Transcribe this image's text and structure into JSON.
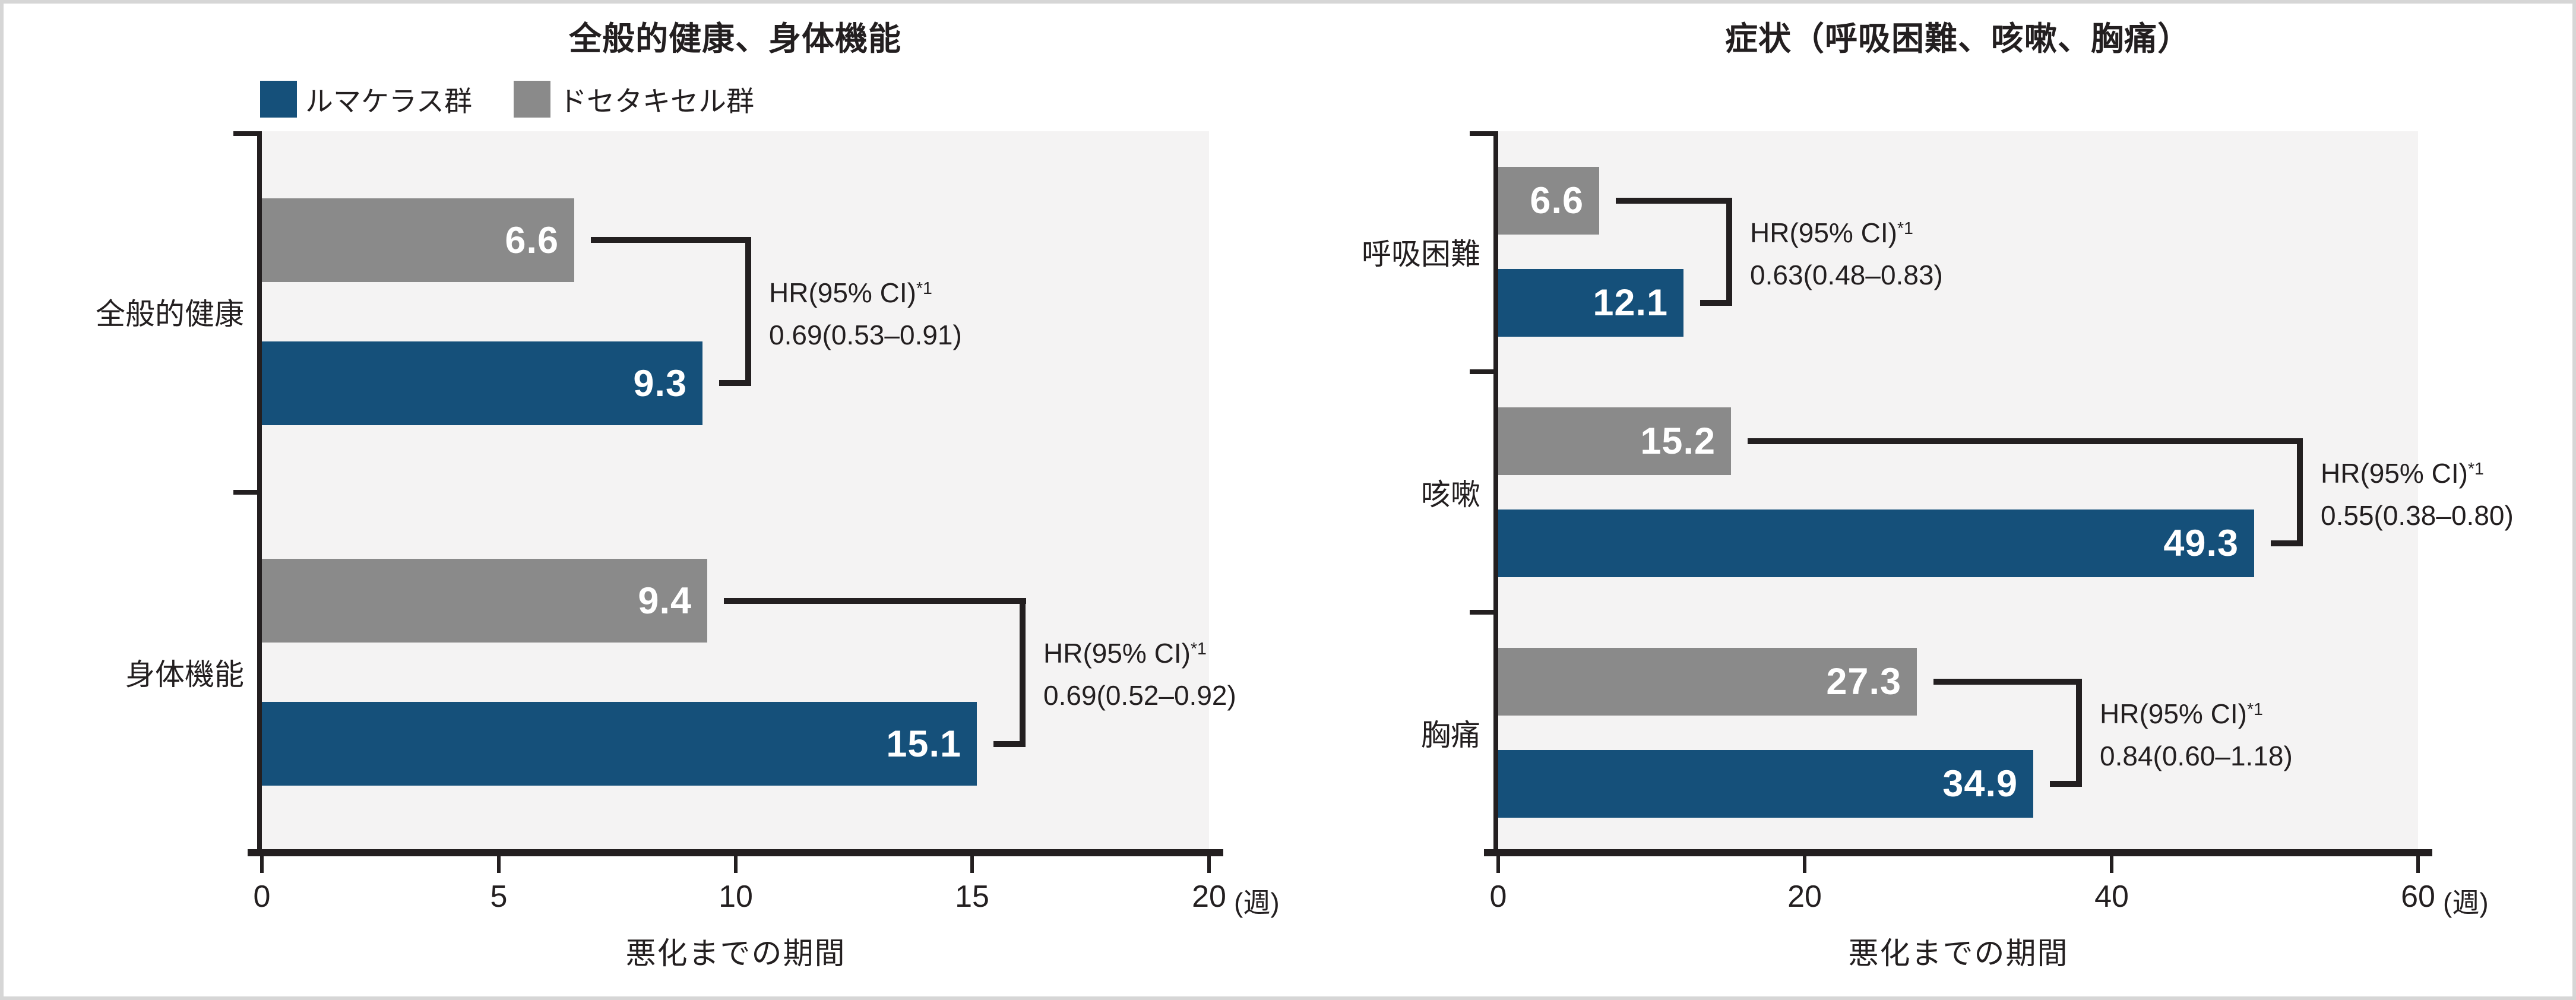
{
  "colors": {
    "lumakras_blue": "#15507a",
    "docetaxel_gray": "#8a8a8a",
    "plot_background": "#f4f3f3",
    "ink": "#231f20",
    "frame_border": "#d6d6d6"
  },
  "legend": {
    "items": [
      {
        "label": "ルマケラス群",
        "color": "#15507a"
      },
      {
        "label": "ドセタキセル群",
        "color": "#8a8a8a"
      }
    ]
  },
  "chart_data": [
    {
      "type": "bar",
      "orientation": "horizontal",
      "title": "全般的健康、身体機能",
      "xlabel": "悪化までの期間",
      "x_unit": "(週)",
      "xlim": [
        0,
        20
      ],
      "xticks": [
        "0",
        "5",
        "10",
        "15",
        "20"
      ],
      "grid": false,
      "legend_position": "top-left",
      "categories": [
        "全般的健康",
        "身体機能"
      ],
      "series": [
        {
          "name": "ルマケラス群",
          "color": "#15507a",
          "values": [
            9.3,
            15.1
          ]
        },
        {
          "name": "ドセタキセル群",
          "color": "#8a8a8a",
          "values": [
            6.6,
            9.4
          ]
        }
      ],
      "annotations": [
        {
          "label": "HR(95% CI)",
          "sup": "*1",
          "value": "0.69(0.53–0.91)"
        },
        {
          "label": "HR(95% CI)",
          "sup": "*1",
          "value": "0.69(0.52–0.92)"
        }
      ]
    },
    {
      "type": "bar",
      "orientation": "horizontal",
      "title": "症状（呼吸困難、咳嗽、胸痛）",
      "xlabel": "悪化までの期間",
      "x_unit": "(週)",
      "xlim": [
        0,
        60
      ],
      "xticks": [
        "0",
        "20",
        "40",
        "60"
      ],
      "grid": false,
      "legend_position": "none",
      "categories": [
        "呼吸困難",
        "咳嗽",
        "胸痛"
      ],
      "series": [
        {
          "name": "ルマケラス群",
          "color": "#15507a",
          "values": [
            12.1,
            49.3,
            34.9
          ]
        },
        {
          "name": "ドセタキセル群",
          "color": "#8a8a8a",
          "values": [
            6.6,
            15.2,
            27.3
          ]
        }
      ],
      "annotations": [
        {
          "label": "HR(95% CI)",
          "sup": "*1",
          "value": "0.63(0.48–0.83)"
        },
        {
          "label": "HR(95% CI)",
          "sup": "*1",
          "value": "0.55(0.38–0.80)"
        },
        {
          "label": "HR(95% CI)",
          "sup": "*1",
          "value": "0.84(0.60–1.18)"
        }
      ]
    }
  ]
}
